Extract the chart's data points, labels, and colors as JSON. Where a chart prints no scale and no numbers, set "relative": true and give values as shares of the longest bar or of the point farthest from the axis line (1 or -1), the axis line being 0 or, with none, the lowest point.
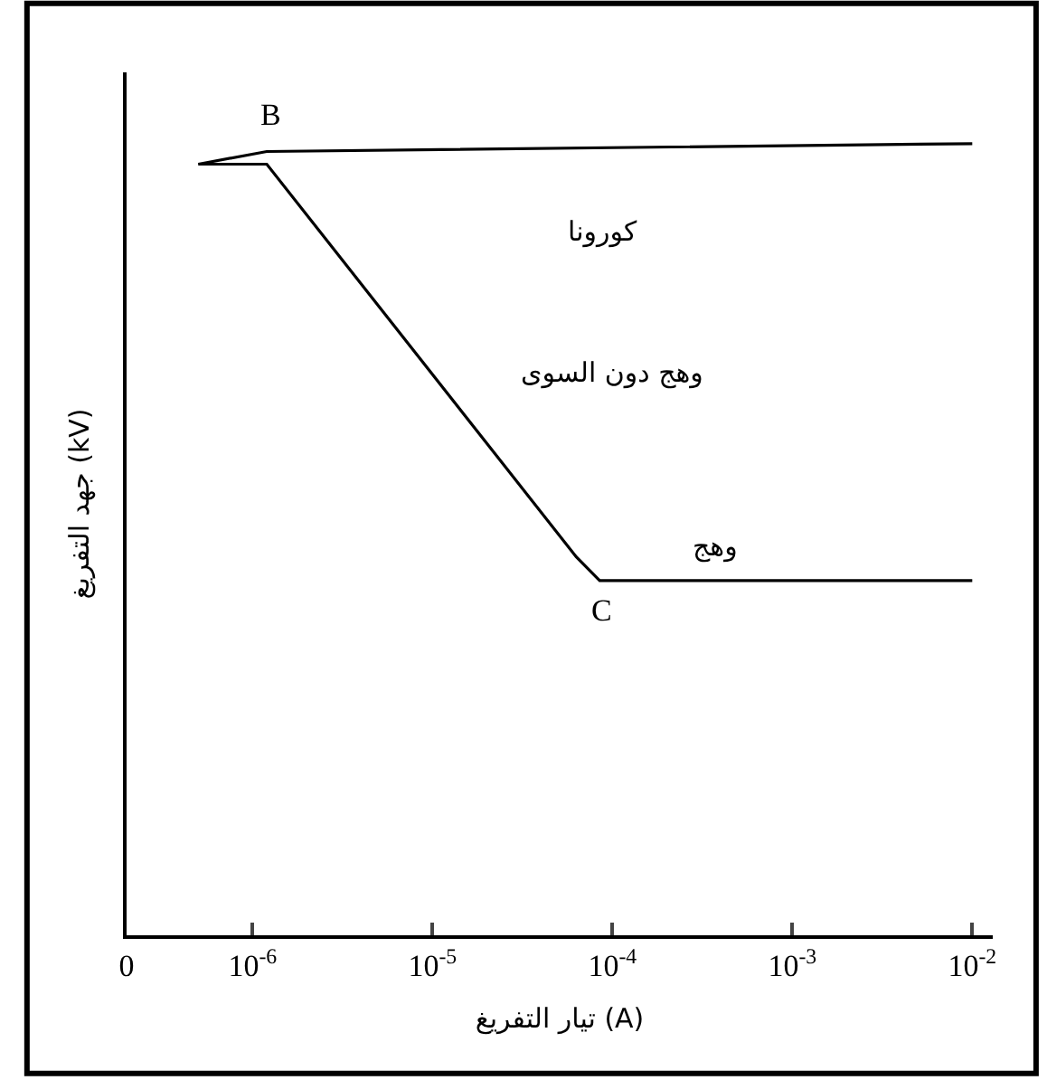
{
  "chart_data": {
    "type": "line",
    "relative": true,
    "xlabel": "تيار التفريغ (A)",
    "ylabel": "جهد التفريغ (kV)",
    "log": "x",
    "marker": "none",
    "line_style": "solid",
    "xlim": [
      0,
      0.013
    ],
    "xticks": [
      0,
      {
        "value": 1e-06,
        "label": "10$^{-6}$"
      },
      {
        "value": 1e-05,
        "label": "10$^{-5}$"
      },
      {
        "value": 0.0001,
        "label": "10$^{-4}$"
      },
      {
        "value": 0.001,
        "label": "10$^{-3}$"
      },
      {
        "value": 0.01,
        "label": "10$^{-2}$"
      }
    ],
    "series": [
      {
        "color": "#000000",
        "x": [
          5e-07,
          1.2e-06,
          0.01
        ],
        "values": [
          0.974,
          0.99,
          1.0
        ]
      },
      {
        "color": "#000000",
        "x": [
          5e-07,
          1.2e-06,
          6.3e-05,
          8.5e-05,
          0.01
        ],
        "values": [
          0.974,
          0.974,
          0.478,
          0.448,
          0.448
        ]
      }
    ],
    "annotations": [
      "B",
      "C",
      "كورونا",
      "وهج دون السوى",
      "وهج"
    ]
  }
}
